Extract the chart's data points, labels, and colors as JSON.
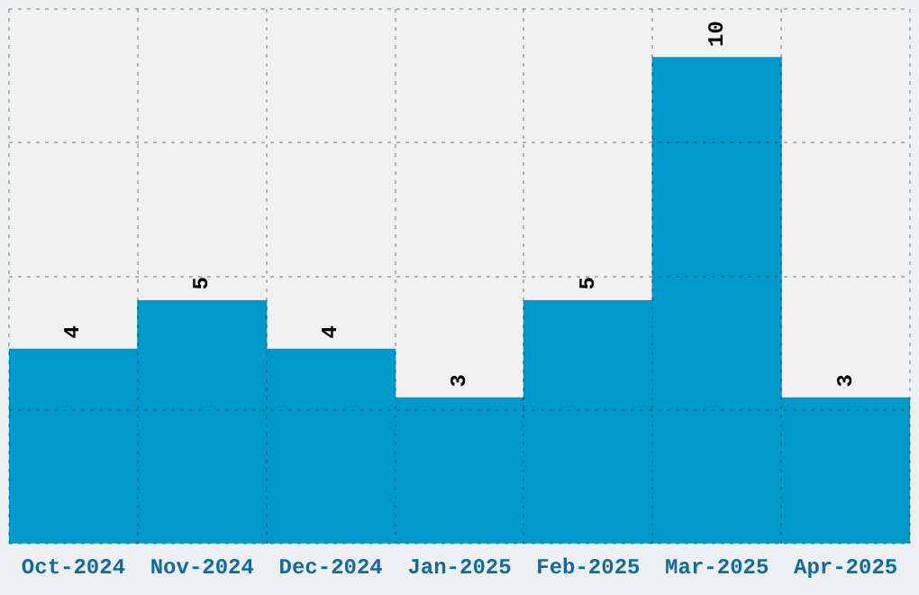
{
  "chart_data": {
    "type": "bar",
    "categories": [
      "Oct-2024",
      "Nov-2024",
      "Dec-2024",
      "Jan-2025",
      "Feb-2025",
      "Mar-2025",
      "Apr-2025"
    ],
    "values": [
      4,
      5,
      4,
      3,
      5,
      10,
      3
    ],
    "color": "#0099cc",
    "data_labels": true,
    "grid": true,
    "tick_labels": "x",
    "ylim": [
      0,
      11
    ],
    "yticks": [
      {
        "value": 0,
        "label": null
      },
      {
        "value": 2.75,
        "label": null
      },
      {
        "value": 5.5,
        "label": null
      },
      {
        "value": 8.25,
        "label": null
      },
      {
        "value": 11,
        "label": null
      }
    ]
  }
}
